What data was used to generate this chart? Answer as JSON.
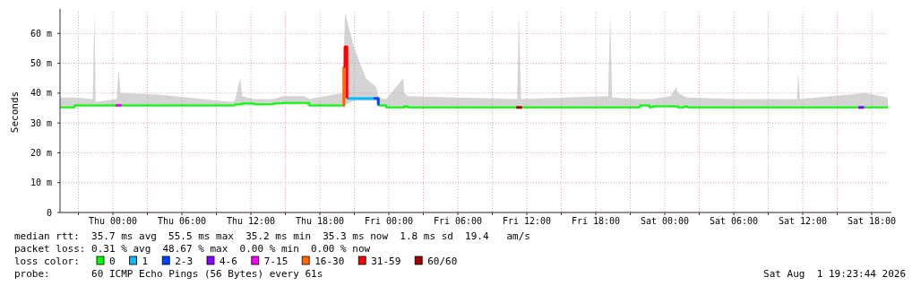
{
  "chart_data": {
    "type": "line",
    "ylabel": "Seconds",
    "legend_title": "loss color:",
    "legend": "bottom",
    "grid": true,
    "marker": "none",
    "line_style": "solid",
    "xlim": [
      "2026-07-29T19:24",
      "2026-08-01T19:24"
    ],
    "xticks": [
      {
        "value": "2026-07-29T21:00",
        "label": null
      },
      {
        "value": "2026-07-30T00:00",
        "label": "Thu 00:00"
      },
      {
        "value": "2026-07-30T03:00",
        "label": null
      },
      {
        "value": "2026-07-30T06:00",
        "label": "Thu 06:00"
      },
      {
        "value": "2026-07-30T09:00",
        "label": null
      },
      {
        "value": "2026-07-30T12:00",
        "label": "Thu 12:00"
      },
      {
        "value": "2026-07-30T15:00",
        "label": null
      },
      {
        "value": "2026-07-30T18:00",
        "label": "Thu 18:00"
      },
      {
        "value": "2026-07-30T21:00",
        "label": null
      },
      {
        "value": "2026-07-31T00:00",
        "label": "Fri 00:00"
      },
      {
        "value": "2026-07-31T03:00",
        "label": null
      },
      {
        "value": "2026-07-31T06:00",
        "label": "Fri 06:00"
      },
      {
        "value": "2026-07-31T09:00",
        "label": null
      },
      {
        "value": "2026-07-31T12:00",
        "label": "Fri 12:00"
      },
      {
        "value": "2026-07-31T15:00",
        "label": null
      },
      {
        "value": "2026-07-31T18:00",
        "label": "Fri 18:00"
      },
      {
        "value": "2026-07-31T21:00",
        "label": null
      },
      {
        "value": "2026-08-01T00:00",
        "label": "Sat 00:00"
      },
      {
        "value": "2026-08-01T03:00",
        "label": null
      },
      {
        "value": "2026-08-01T06:00",
        "label": "Sat 06:00"
      },
      {
        "value": "2026-08-01T09:00",
        "label": null
      },
      {
        "value": "2026-08-01T12:00",
        "label": "Sat 12:00"
      },
      {
        "value": "2026-08-01T15:00",
        "label": null
      },
      {
        "value": "2026-08-01T18:00",
        "label": "Sat 18:00"
      }
    ],
    "ylim": [
      0,
      67.3
    ],
    "yticks": [
      0,
      {
        "value": 10,
        "label": "10 m"
      },
      {
        "value": 20,
        "label": "20 m"
      },
      {
        "value": 30,
        "label": "30 m"
      },
      {
        "value": 40,
        "label": "40 m"
      },
      {
        "value": 50,
        "label": "50 m"
      },
      {
        "value": 60,
        "label": "60 m"
      }
    ],
    "series": [
      {
        "name": "0",
        "color": "#00ff00",
        "x": [
          "2026-07-29T19:24",
          "2026-07-29T20:40",
          "2026-07-29T22:15",
          "2026-07-29T22:23",
          "2026-07-29T22:30",
          "2026-07-30T00:20",
          "2026-07-30T00:29",
          "2026-07-30T00:40",
          "2026-07-30T04:00",
          "2026-07-30T10:28",
          "2026-07-30T10:38",
          "2026-07-30T11:05",
          "2026-07-30T11:15",
          "2026-07-30T12:15",
          "2026-07-30T14:00",
          "2026-07-30T14:45",
          "2026-07-30T16:42",
          "2026-07-30T17:05",
          "2026-07-30T20:00",
          "2026-07-30T20:11",
          "2026-07-30T21:00",
          "2026-07-30T22:00",
          "2026-07-30T22:55",
          "2026-07-30T23:05",
          "2026-07-30T23:37",
          "2026-07-30T23:46",
          "2026-07-31T01:15",
          "2026-07-31T01:20",
          "2026-07-31T01:40",
          "2026-07-31T06:00",
          "2026-07-31T11:10",
          "2026-07-31T11:18",
          "2026-07-31T11:30",
          "2026-07-31T19:05",
          "2026-07-31T19:15",
          "2026-07-31T19:25",
          "2026-07-31T21:40",
          "2026-07-31T21:50",
          "2026-07-31T22:15",
          "2026-07-31T22:40",
          "2026-07-31T22:55",
          "2026-08-01T00:30",
          "2026-08-01T01:00",
          "2026-08-01T01:10",
          "2026-08-01T01:40",
          "2026-08-01T02:00",
          "2026-08-01T06:00",
          "2026-08-01T11:30",
          "2026-08-01T11:36",
          "2026-08-01T11:45",
          "2026-08-01T17:30",
          "2026-08-01T19:24"
        ],
        "values": [
          35.2,
          35.9,
          35.9,
          35.9,
          35.9,
          35.9,
          35.9,
          35.9,
          35.9,
          35.9,
          36.3,
          36.3,
          36.6,
          36.3,
          36.6,
          36.7,
          36.7,
          35.9,
          35.9,
          null,
          null,
          null,
          null,
          35.9,
          35.9,
          35.2,
          35.2,
          35.6,
          35.2,
          35.2,
          35.2,
          35.2,
          35.2,
          35.2,
          35.2,
          35.2,
          35.2,
          35.9,
          35.9,
          35.2,
          35.6,
          35.6,
          35.6,
          35.2,
          35.5,
          35.2,
          35.2,
          35.2,
          35.2,
          35.2,
          35.2,
          35.2
        ],
        "lower": [
          34.9,
          35.4,
          35.4,
          35.4,
          35.4,
          35.4,
          35.4,
          35.4,
          35.4,
          35.4,
          35.8,
          35.8,
          36,
          35.8,
          36,
          36.2,
          36.2,
          35.4,
          35.4,
          36,
          37.5,
          37.5,
          37.5,
          35.4,
          35.4,
          34.9,
          34.9,
          35,
          34.9,
          34.9,
          34.9,
          34.9,
          34.9,
          34.9,
          34.9,
          34.9,
          34.9,
          35.4,
          35.4,
          34.9,
          35.1,
          35.1,
          35.1,
          34.9,
          35,
          34.9,
          34.9,
          34.9,
          34.9,
          34.9,
          34.9,
          34.9
        ],
        "upper": [
          38.5,
          38.5,
          38,
          67,
          37,
          38,
          48,
          40,
          39.5,
          37,
          38,
          45,
          39,
          38,
          38,
          39,
          39,
          38,
          40,
          67,
          55,
          45,
          42,
          38.5,
          38,
          38,
          45,
          40,
          39,
          38.5,
          38,
          67,
          38,
          39,
          67,
          38.5,
          38,
          38,
          38,
          38,
          38,
          39,
          42,
          40,
          39,
          38.5,
          38,
          38,
          47,
          38,
          40,
          38.5
        ]
      },
      {
        "name": "1",
        "color": "#00bbff",
        "x": [
          "2026-07-30T20:21",
          "2026-07-30T22:40"
        ],
        "values": [
          38.2,
          38.2
        ]
      },
      {
        "name": "2-3",
        "color": "#0044ff",
        "x": [
          "2026-07-30T22:40",
          "2026-07-30T22:55",
          "2026-07-30T23:05"
        ],
        "values": [
          38.2,
          38.2,
          35.9
        ]
      },
      {
        "name": "4-6",
        "color": "#8800ff",
        "x": [
          "2026-08-01T16:50",
          "2026-08-01T17:20"
        ],
        "values": [
          35.2,
          35.2
        ]
      },
      {
        "name": "7-15",
        "color": "#ff00ff",
        "x": [
          "2026-07-30T00:15",
          "2026-07-30T00:45"
        ],
        "values": [
          35.9,
          35.9
        ]
      },
      {
        "name": "16-30",
        "color": "#ff6600",
        "x": [
          "2026-07-30T20:00",
          "2026-07-30T20:05"
        ],
        "values": [
          35.9,
          49
        ]
      },
      {
        "name": "31-59",
        "color": "#ff0000",
        "x": [
          "2026-07-30T20:05",
          "2026-07-30T20:11",
          "2026-07-30T20:21"
        ],
        "values": [
          49,
          55.5,
          38.2
        ]
      },
      {
        "name": "60/60",
        "color": "#a00000",
        "x": [
          "2026-07-31T11:05",
          "2026-07-31T11:35"
        ],
        "values": [
          35.2,
          35.2
        ]
      }
    ],
    "annotations": [
      "median rtt:  35.7 ms avg  55.5 ms max  35.2 ms min  35.3 ms now  1.8 ms sd  19.4   am/s",
      "packet loss: 0.31 % avg  48.67 % max  0.00 % min  0.00 % now",
      "probe:       60 ICMP Echo Pings (56 Bytes) every 61s",
      "Sat Aug  1 19:23:44 2026"
    ]
  }
}
